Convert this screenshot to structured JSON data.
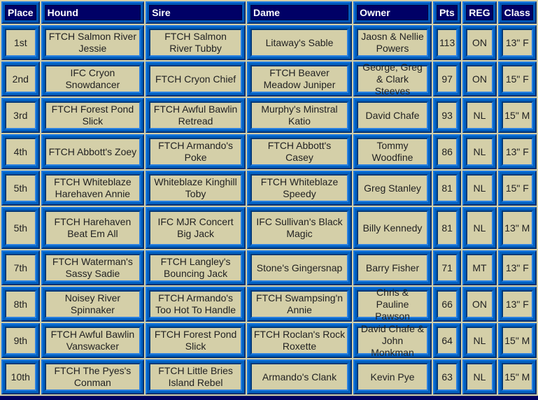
{
  "headers": [
    "Place",
    "Hound",
    "Sire",
    "Dame",
    "Owner",
    "Pts",
    "REG",
    "Class"
  ],
  "rows": [
    [
      "1st",
      "FTCH Salmon River Jessie",
      "FTCH Salmon River Tubby",
      "Litaway's Sable",
      "Jaosn & Nellie Powers",
      "113",
      "ON",
      "13\" F"
    ],
    [
      "2nd",
      "IFC Cryon Snowdancer",
      "FTCH Cryon Chief",
      "FTCH Beaver Meadow Juniper",
      "George, Greg & Clark Steeves",
      "97",
      "ON",
      "15\" F"
    ],
    [
      "3rd",
      "FTCH Forest Pond Slick",
      "FTCH Awful Bawlin Retread",
      "Murphy's Minstral Katio",
      "David Chafe",
      "93",
      "NL",
      "15\" M"
    ],
    [
      "4th",
      "FTCH Abbott's Zoey",
      "FTCH Armando's Poke",
      "FTCH Abbott's Casey",
      "Tommy Woodfine",
      "86",
      "NL",
      "13\" F"
    ],
    [
      "5th",
      "FTCH Whiteblaze Harehaven Annie",
      "Whiteblaze Kinghill Toby",
      "FTCH Whiteblaze Speedy",
      "Greg Stanley",
      "81",
      "NL",
      "15\" F"
    ],
    [
      "5th",
      "FTCH Harehaven Beat Em All",
      "IFC MJR Concert Big Jack",
      "IFC Sullivan's Black Magic",
      "Billy Kennedy",
      "81",
      "NL",
      "13\" M"
    ],
    [
      "7th",
      "FTCH Waterman's Sassy Sadie",
      "FTCH Langley's Bouncing Jack",
      "Stone's Gingersnap",
      "Barry Fisher",
      "71",
      "MT",
      "13\" F"
    ],
    [
      "8th",
      "Noisey River Spinnaker",
      "FTCH Armando's Too Hot To Handle",
      "FTCH Swampsing'n Annie",
      "Chris & Pauline Pawson",
      "66",
      "ON",
      "13\" F"
    ],
    [
      "9th",
      "FTCH Awful Bawlin Vanswacker",
      "FTCH Forest Pond Slick",
      "FTCH Roclan's Rock Roxette",
      "David Chafe & John Monkman",
      "64",
      "NL",
      "15\" M"
    ],
    [
      "10th",
      "FTCH The Pyes's Conman",
      "FTCH Little Bries Island Rebel",
      "Armando's Clank",
      "Kevin Pye",
      "63",
      "NL",
      "15\" M"
    ]
  ],
  "colors": {
    "header_bg": "#000066",
    "cell_bg": "#d4cfa8",
    "frame": "#0060c0"
  }
}
